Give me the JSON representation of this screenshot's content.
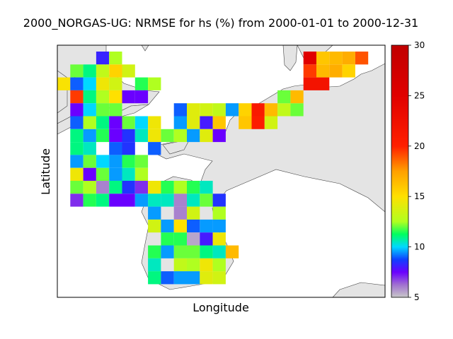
{
  "title": "2000_NORGAS-UG: NRMSE for hs (%) from 2000-01-01 to 2000-12-31",
  "map": {
    "xlabel": "Longitude",
    "ylabel": "Latitude",
    "land_color": "#e4e4e4",
    "water_color": "#ffffff",
    "coast_color": "#444444"
  },
  "colorbar": {
    "min": 5,
    "max": 30,
    "ticks": [
      5,
      10,
      15,
      20,
      25,
      30
    ],
    "tick_labels": [
      "5",
      "10",
      "15",
      "20",
      "25",
      "30"
    ]
  },
  "chart_data": {
    "type": "heatmap",
    "title": "2000_NORGAS-UG: NRMSE for hs (%) from 2000-01-01 to 2000-12-31",
    "xlabel": "Longitude",
    "ylabel": "Latitude",
    "value_range": [
      5,
      30
    ],
    "colormap": "spectral-like (gray-violet-blue-cyan-green-yellow-orange-red-darkred)",
    "grid_columns": 24,
    "grid_rows": 18,
    "cells": [
      {
        "col": 3,
        "row": 0,
        "value": 8.2
      },
      {
        "col": 4,
        "row": 0,
        "value": 12.5
      },
      {
        "col": 1,
        "row": 1,
        "value": 12.0
      },
      {
        "col": 2,
        "row": 1,
        "value": 11.0
      },
      {
        "col": 3,
        "row": 1,
        "value": 13.0
      },
      {
        "col": 4,
        "row": 1,
        "value": 15.5
      },
      {
        "col": 5,
        "row": 1,
        "value": 13.5
      },
      {
        "col": 0,
        "row": 2,
        "value": 14.8
      },
      {
        "col": 1,
        "row": 2,
        "value": 9.0
      },
      {
        "col": 2,
        "row": 2,
        "value": 10.0
      },
      {
        "col": 3,
        "row": 2,
        "value": 14.5
      },
      {
        "col": 4,
        "row": 2,
        "value": 13.5
      },
      {
        "col": 6,
        "row": 2,
        "value": 11.5
      },
      {
        "col": 7,
        "row": 2,
        "value": 12.5
      },
      {
        "col": 1,
        "row": 3,
        "value": 19.5
      },
      {
        "col": 2,
        "row": 3,
        "value": 11.0
      },
      {
        "col": 3,
        "row": 3,
        "value": 12.5
      },
      {
        "col": 4,
        "row": 3,
        "value": 15.0
      },
      {
        "col": 5,
        "row": 3,
        "value": 7.5
      },
      {
        "col": 6,
        "row": 3,
        "value": 7.5
      },
      {
        "col": 1,
        "row": 4,
        "value": 7.5
      },
      {
        "col": 2,
        "row": 4,
        "value": 10.0
      },
      {
        "col": 3,
        "row": 4,
        "value": 12.0
      },
      {
        "col": 4,
        "row": 4,
        "value": 12.0
      },
      {
        "col": 1,
        "row": 5,
        "value": 9.0
      },
      {
        "col": 2,
        "row": 5,
        "value": 12.5
      },
      {
        "col": 3,
        "row": 5,
        "value": 11.0
      },
      {
        "col": 4,
        "row": 5,
        "value": 7.5
      },
      {
        "col": 5,
        "row": 5,
        "value": 12.0
      },
      {
        "col": 6,
        "row": 5,
        "value": 10.0
      },
      {
        "col": 7,
        "row": 5,
        "value": 14.5
      },
      {
        "col": 1,
        "row": 6,
        "value": 11.0
      },
      {
        "col": 2,
        "row": 6,
        "value": 9.5
      },
      {
        "col": 3,
        "row": 6,
        "value": 11.5
      },
      {
        "col": 4,
        "row": 6,
        "value": 7.5
      },
      {
        "col": 5,
        "row": 6,
        "value": 8.5
      },
      {
        "col": 6,
        "row": 6,
        "value": 10.5
      },
      {
        "col": 7,
        "row": 6,
        "value": 14.5
      },
      {
        "col": 8,
        "row": 6,
        "value": 12.0
      },
      {
        "col": 9,
        "row": 6,
        "value": 12.5
      },
      {
        "col": 1,
        "row": 7,
        "value": 11.0
      },
      {
        "col": 2,
        "row": 7,
        "value": 10.5
      },
      {
        "col": 4,
        "row": 7,
        "value": 9.0
      },
      {
        "col": 5,
        "row": 7,
        "value": 8.5
      },
      {
        "col": 7,
        "row": 7,
        "value": 9.0
      },
      {
        "col": 1,
        "row": 8,
        "value": 9.5
      },
      {
        "col": 2,
        "row": 8,
        "value": 12.0
      },
      {
        "col": 3,
        "row": 8,
        "value": 10.0
      },
      {
        "col": 4,
        "row": 8,
        "value": 9.5
      },
      {
        "col": 5,
        "row": 8,
        "value": 11.5
      },
      {
        "col": 6,
        "row": 8,
        "value": 12.0
      },
      {
        "col": 1,
        "row": 9,
        "value": 14.5
      },
      {
        "col": 2,
        "row": 9,
        "value": 7.5
      },
      {
        "col": 3,
        "row": 9,
        "value": 12.0
      },
      {
        "col": 4,
        "row": 9,
        "value": 9.5
      },
      {
        "col": 5,
        "row": 9,
        "value": 10.5
      },
      {
        "col": 6,
        "row": 9,
        "value": 12.5
      },
      {
        "col": 1,
        "row": 10,
        "value": 12.0
      },
      {
        "col": 2,
        "row": 10,
        "value": 12.5
      },
      {
        "col": 3,
        "row": 10,
        "value": 6.0
      },
      {
        "col": 4,
        "row": 10,
        "value": 11.0
      },
      {
        "col": 5,
        "row": 10,
        "value": 8.5
      },
      {
        "col": 6,
        "row": 10,
        "value": 7.0
      },
      {
        "col": 7,
        "row": 10,
        "value": 14.5
      },
      {
        "col": 8,
        "row": 10,
        "value": 11.5
      },
      {
        "col": 9,
        "row": 10,
        "value": 12.5
      },
      {
        "col": 10,
        "row": 10,
        "value": 11.5
      },
      {
        "col": 11,
        "row": 10,
        "value": 10.5
      },
      {
        "col": 1,
        "row": 11,
        "value": 7.0
      },
      {
        "col": 2,
        "row": 11,
        "value": 11.5
      },
      {
        "col": 3,
        "row": 11,
        "value": 11.0
      },
      {
        "col": 4,
        "row": 11,
        "value": 7.5
      },
      {
        "col": 5,
        "row": 11,
        "value": 7.5
      },
      {
        "col": 6,
        "row": 11,
        "value": 9.5
      },
      {
        "col": 7,
        "row": 11,
        "value": 10.5
      },
      {
        "col": 8,
        "row": 11,
        "value": 10.5
      },
      {
        "col": 9,
        "row": 11,
        "value": 6.0
      },
      {
        "col": 10,
        "row": 11,
        "value": 10.5
      },
      {
        "col": 11,
        "row": 11,
        "value": 12.0
      },
      {
        "col": 12,
        "row": 11,
        "value": 8.5
      },
      {
        "col": 7,
        "row": 12,
        "value": 9.5
      },
      {
        "col": 9,
        "row": 12,
        "value": 6.0
      },
      {
        "col": 10,
        "row": 12,
        "value": 13.5
      },
      {
        "col": 12,
        "row": 12,
        "value": 12.5
      },
      {
        "col": 7,
        "row": 13,
        "value": 13.5
      },
      {
        "col": 8,
        "row": 13,
        "value": 9.5
      },
      {
        "col": 9,
        "row": 13,
        "value": 15.0
      },
      {
        "col": 10,
        "row": 13,
        "value": 9.0
      },
      {
        "col": 11,
        "row": 13,
        "value": 9.5
      },
      {
        "col": 12,
        "row": 13,
        "value": 9.5
      },
      {
        "col": 8,
        "row": 14,
        "value": 11.5
      },
      {
        "col": 9,
        "row": 14,
        "value": 11.5
      },
      {
        "col": 10,
        "row": 14,
        "value": 5.5
      },
      {
        "col": 11,
        "row": 14,
        "value": 8.0
      },
      {
        "col": 12,
        "row": 14,
        "value": 14.5
      },
      {
        "col": 7,
        "row": 15,
        "value": 11.5
      },
      {
        "col": 8,
        "row": 15,
        "value": 9.5
      },
      {
        "col": 9,
        "row": 15,
        "value": 12.0
      },
      {
        "col": 10,
        "row": 15,
        "value": 12.0
      },
      {
        "col": 11,
        "row": 15,
        "value": 11.0
      },
      {
        "col": 12,
        "row": 15,
        "value": 10.5
      },
      {
        "col": 13,
        "row": 15,
        "value": 16.5
      },
      {
        "col": 7,
        "row": 16,
        "value": 10.5
      },
      {
        "col": 9,
        "row": 16,
        "value": 13.0
      },
      {
        "col": 10,
        "row": 16,
        "value": 12.5
      },
      {
        "col": 11,
        "row": 16,
        "value": 14.5
      },
      {
        "col": 12,
        "row": 16,
        "value": 12.5
      },
      {
        "col": 7,
        "row": 17,
        "value": 11.0
      },
      {
        "col": 8,
        "row": 17,
        "value": 9.0
      },
      {
        "col": 9,
        "row": 17,
        "value": 9.5
      },
      {
        "col": 10,
        "row": 17,
        "value": 9.5
      },
      {
        "col": 11,
        "row": 17,
        "value": 14.0
      },
      {
        "col": 12,
        "row": 17,
        "value": 13.5
      },
      {
        "col": 9,
        "row": 4,
        "value": 9.0
      },
      {
        "col": 10,
        "row": 4,
        "value": 14.0
      },
      {
        "col": 11,
        "row": 4,
        "value": 13.5
      },
      {
        "col": 12,
        "row": 4,
        "value": 13.0
      },
      {
        "col": 13,
        "row": 4,
        "value": 9.5
      },
      {
        "col": 14,
        "row": 4,
        "value": 15.5
      },
      {
        "col": 15,
        "row": 4,
        "value": 21.0
      },
      {
        "col": 16,
        "row": 4,
        "value": 16.5
      },
      {
        "col": 17,
        "row": 4,
        "value": 13.0
      },
      {
        "col": 18,
        "row": 4,
        "value": 12.0
      },
      {
        "col": 9,
        "row": 5,
        "value": 9.5
      },
      {
        "col": 10,
        "row": 5,
        "value": 14.0
      },
      {
        "col": 11,
        "row": 5,
        "value": 8.0
      },
      {
        "col": 12,
        "row": 5,
        "value": 16.0
      },
      {
        "col": 14,
        "row": 5,
        "value": 16.0
      },
      {
        "col": 15,
        "row": 5,
        "value": 20.5
      },
      {
        "col": 16,
        "row": 5,
        "value": 13.5
      },
      {
        "col": 10,
        "row": 6,
        "value": 9.5
      },
      {
        "col": 11,
        "row": 6,
        "value": 14.0
      },
      {
        "col": 12,
        "row": 6,
        "value": 7.5
      },
      {
        "col": 17,
        "row": 3,
        "value": 12.0
      },
      {
        "col": 18,
        "row": 3,
        "value": 16.5
      },
      {
        "col": 19,
        "row": 0,
        "value": 25.0
      },
      {
        "col": 20,
        "row": 0,
        "value": 16.0
      },
      {
        "col": 21,
        "row": 0,
        "value": 16.5
      },
      {
        "col": 22,
        "row": 0,
        "value": 17.0
      },
      {
        "col": 23,
        "row": 0,
        "value": 19.0
      },
      {
        "col": 19,
        "row": 1,
        "value": 19.5
      },
      {
        "col": 20,
        "row": 1,
        "value": 16.5
      },
      {
        "col": 21,
        "row": 1,
        "value": 17.0
      },
      {
        "col": 22,
        "row": 1,
        "value": 15.5
      },
      {
        "col": 19,
        "row": 2,
        "value": 22.0
      },
      {
        "col": 20,
        "row": 2,
        "value": 22.0
      }
    ]
  }
}
